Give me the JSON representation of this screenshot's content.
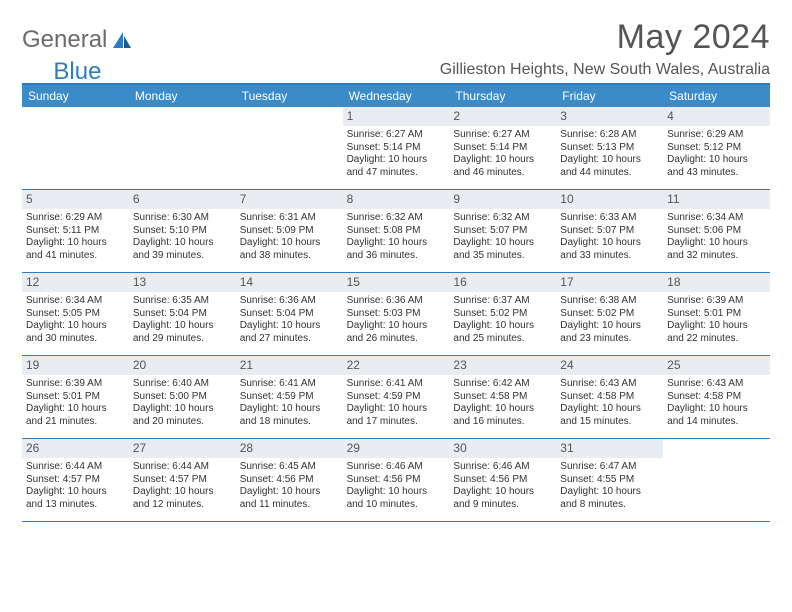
{
  "brand": {
    "word1": "General",
    "word2": "Blue"
  },
  "title": "May 2024",
  "location": "Gillieston Heights, New South Wales, Australia",
  "colors": {
    "header_bg": "#3b8bc8",
    "accent": "#2f7bbf",
    "daynum_bg": "#e9edf1",
    "text": "#333333",
    "muted": "#555555"
  },
  "day_names": [
    "Sunday",
    "Monday",
    "Tuesday",
    "Wednesday",
    "Thursday",
    "Friday",
    "Saturday"
  ],
  "weeks": [
    [
      null,
      null,
      null,
      {
        "n": "1",
        "sr": "6:27 AM",
        "ss": "5:14 PM",
        "dl": "10 hours and 47 minutes."
      },
      {
        "n": "2",
        "sr": "6:27 AM",
        "ss": "5:14 PM",
        "dl": "10 hours and 46 minutes."
      },
      {
        "n": "3",
        "sr": "6:28 AM",
        "ss": "5:13 PM",
        "dl": "10 hours and 44 minutes."
      },
      {
        "n": "4",
        "sr": "6:29 AM",
        "ss": "5:12 PM",
        "dl": "10 hours and 43 minutes."
      }
    ],
    [
      {
        "n": "5",
        "sr": "6:29 AM",
        "ss": "5:11 PM",
        "dl": "10 hours and 41 minutes."
      },
      {
        "n": "6",
        "sr": "6:30 AM",
        "ss": "5:10 PM",
        "dl": "10 hours and 39 minutes."
      },
      {
        "n": "7",
        "sr": "6:31 AM",
        "ss": "5:09 PM",
        "dl": "10 hours and 38 minutes."
      },
      {
        "n": "8",
        "sr": "6:32 AM",
        "ss": "5:08 PM",
        "dl": "10 hours and 36 minutes."
      },
      {
        "n": "9",
        "sr": "6:32 AM",
        "ss": "5:07 PM",
        "dl": "10 hours and 35 minutes."
      },
      {
        "n": "10",
        "sr": "6:33 AM",
        "ss": "5:07 PM",
        "dl": "10 hours and 33 minutes."
      },
      {
        "n": "11",
        "sr": "6:34 AM",
        "ss": "5:06 PM",
        "dl": "10 hours and 32 minutes."
      }
    ],
    [
      {
        "n": "12",
        "sr": "6:34 AM",
        "ss": "5:05 PM",
        "dl": "10 hours and 30 minutes."
      },
      {
        "n": "13",
        "sr": "6:35 AM",
        "ss": "5:04 PM",
        "dl": "10 hours and 29 minutes."
      },
      {
        "n": "14",
        "sr": "6:36 AM",
        "ss": "5:04 PM",
        "dl": "10 hours and 27 minutes."
      },
      {
        "n": "15",
        "sr": "6:36 AM",
        "ss": "5:03 PM",
        "dl": "10 hours and 26 minutes."
      },
      {
        "n": "16",
        "sr": "6:37 AM",
        "ss": "5:02 PM",
        "dl": "10 hours and 25 minutes."
      },
      {
        "n": "17",
        "sr": "6:38 AM",
        "ss": "5:02 PM",
        "dl": "10 hours and 23 minutes."
      },
      {
        "n": "18",
        "sr": "6:39 AM",
        "ss": "5:01 PM",
        "dl": "10 hours and 22 minutes."
      }
    ],
    [
      {
        "n": "19",
        "sr": "6:39 AM",
        "ss": "5:01 PM",
        "dl": "10 hours and 21 minutes."
      },
      {
        "n": "20",
        "sr": "6:40 AM",
        "ss": "5:00 PM",
        "dl": "10 hours and 20 minutes."
      },
      {
        "n": "21",
        "sr": "6:41 AM",
        "ss": "4:59 PM",
        "dl": "10 hours and 18 minutes."
      },
      {
        "n": "22",
        "sr": "6:41 AM",
        "ss": "4:59 PM",
        "dl": "10 hours and 17 minutes."
      },
      {
        "n": "23",
        "sr": "6:42 AM",
        "ss": "4:58 PM",
        "dl": "10 hours and 16 minutes."
      },
      {
        "n": "24",
        "sr": "6:43 AM",
        "ss": "4:58 PM",
        "dl": "10 hours and 15 minutes."
      },
      {
        "n": "25",
        "sr": "6:43 AM",
        "ss": "4:58 PM",
        "dl": "10 hours and 14 minutes."
      }
    ],
    [
      {
        "n": "26",
        "sr": "6:44 AM",
        "ss": "4:57 PM",
        "dl": "10 hours and 13 minutes."
      },
      {
        "n": "27",
        "sr": "6:44 AM",
        "ss": "4:57 PM",
        "dl": "10 hours and 12 minutes."
      },
      {
        "n": "28",
        "sr": "6:45 AM",
        "ss": "4:56 PM",
        "dl": "10 hours and 11 minutes."
      },
      {
        "n": "29",
        "sr": "6:46 AM",
        "ss": "4:56 PM",
        "dl": "10 hours and 10 minutes."
      },
      {
        "n": "30",
        "sr": "6:46 AM",
        "ss": "4:56 PM",
        "dl": "10 hours and 9 minutes."
      },
      {
        "n": "31",
        "sr": "6:47 AM",
        "ss": "4:55 PM",
        "dl": "10 hours and 8 minutes."
      },
      null
    ]
  ],
  "labels": {
    "sunrise": "Sunrise:",
    "sunset": "Sunset:",
    "daylight": "Daylight:"
  }
}
